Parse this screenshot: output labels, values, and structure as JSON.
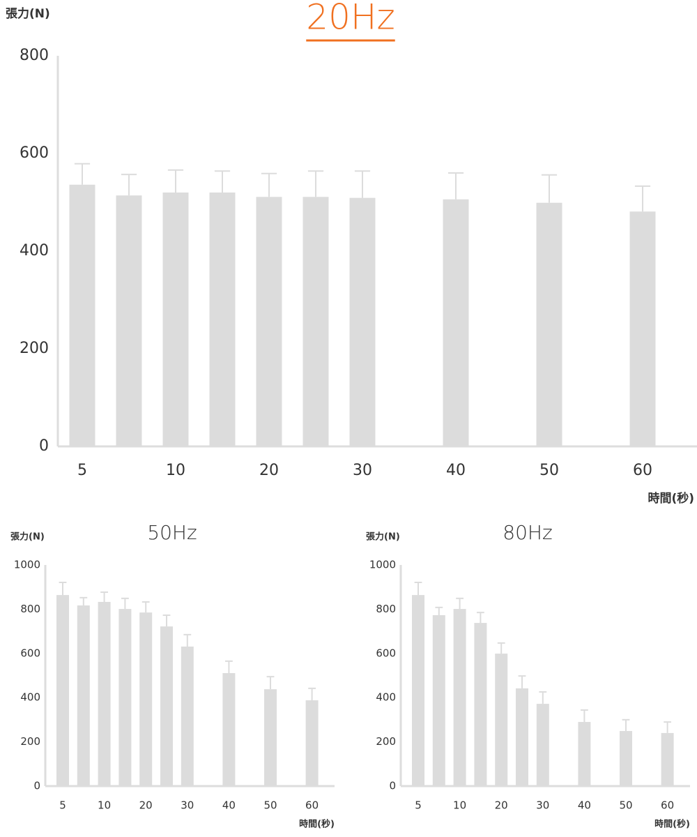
{
  "chart_data": [
    {
      "type": "bar",
      "title": "20Hz",
      "ylabel": "張力(N)",
      "xlabel": "時間(秒)",
      "categories": [
        "5",
        null,
        "10",
        null,
        "20",
        null,
        "30",
        null,
        "40",
        null,
        "50",
        null,
        "60"
      ],
      "values": [
        536,
        514,
        520,
        520,
        511,
        511,
        509,
        null,
        506,
        null,
        499,
        null,
        481
      ],
      "errors": [
        43,
        43,
        46,
        44,
        48,
        53,
        55,
        null,
        54,
        null,
        57,
        null,
        52
      ],
      "color": "#dcdcdc",
      "ylim": [
        0,
        800
      ],
      "yticks": [
        0,
        200,
        400,
        600,
        800
      ]
    },
    {
      "type": "bar",
      "title": "50Hz",
      "ylabel": "張力(N)",
      "xlabel": "時間(秒)",
      "categories": [
        "5",
        null,
        "10",
        null,
        "20",
        null,
        "30",
        null,
        "40",
        null,
        "50",
        null,
        "60"
      ],
      "values": [
        864,
        817,
        833,
        801,
        785,
        722,
        631,
        null,
        511,
        null,
        438,
        null,
        388
      ],
      "errors": [
        57,
        35,
        44,
        48,
        48,
        51,
        54,
        null,
        54,
        null,
        57,
        null,
        54
      ],
      "color": "#dcdcdc",
      "ylim": [
        0,
        1000
      ],
      "yticks": [
        0,
        200,
        400,
        600,
        800,
        1000
      ]
    },
    {
      "type": "bar",
      "title": "80Hz",
      "ylabel": "張力(N)",
      "xlabel": "時間(秒)",
      "categories": [
        "5",
        null,
        "10",
        null,
        "20",
        null,
        "30",
        null,
        "40",
        null,
        "50",
        null,
        "60"
      ],
      "values": [
        864,
        773,
        801,
        738,
        599,
        442,
        372,
        null,
        290,
        null,
        249,
        null,
        240
      ],
      "errors": [
        57,
        35,
        48,
        47,
        48,
        56,
        54,
        null,
        54,
        null,
        51,
        null,
        50
      ],
      "color": "#dcdcdc",
      "ylim": [
        0,
        1000
      ],
      "yticks": [
        0,
        200,
        400,
        600,
        800,
        1000
      ]
    }
  ]
}
